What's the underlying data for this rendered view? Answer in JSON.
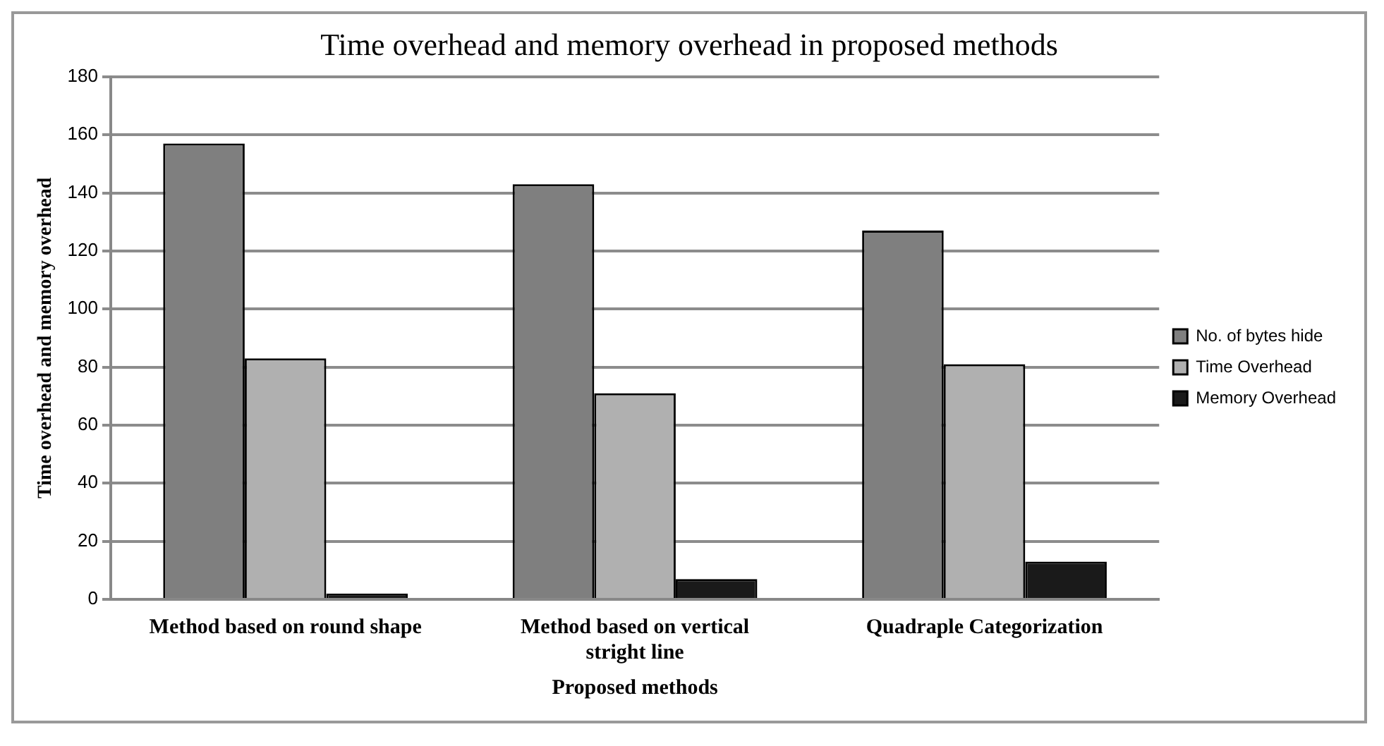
{
  "chart_data": {
    "type": "bar",
    "title": "Time overhead and memory overhead in proposed methods",
    "xlabel": "Proposed methods",
    "ylabel": "Time overhead and memory overhead",
    "categories": [
      "Method based on round shape",
      "Method based on vertical stright line",
      "Quadraple Categorization"
    ],
    "series": [
      {
        "name": "No. of bytes hide",
        "color": "#7f7f7f",
        "values": [
          157,
          143,
          127
        ]
      },
      {
        "name": "Time Overhead",
        "color": "#b0b0b0",
        "values": [
          83,
          71,
          81
        ]
      },
      {
        "name": "Memory Overhead",
        "color": "#1a1a1a",
        "values": [
          2,
          7,
          13
        ]
      }
    ],
    "ylim": [
      0,
      180
    ],
    "yticks": [
      0,
      20,
      40,
      60,
      80,
      100,
      120,
      140,
      160,
      180
    ],
    "grid": "y",
    "legend": "right"
  }
}
